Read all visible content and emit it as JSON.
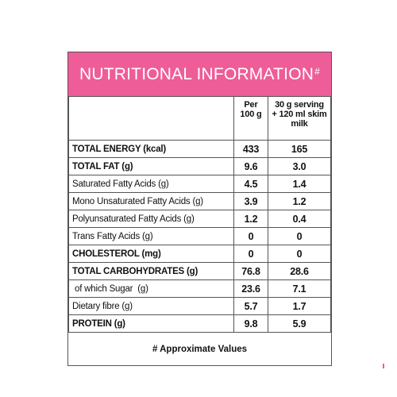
{
  "header": {
    "title": "NUTRITIONAL INFORMATION",
    "mark": "#"
  },
  "table": {
    "columns": [
      "Per 100 g",
      "30 g serving + 120 ml skim milk"
    ],
    "rows": [
      [
        "TOTAL ENERGY (kcal)",
        "433",
        "165"
      ],
      [
        "TOTAL FAT (g)",
        "9.6",
        "3.0"
      ],
      [
        "Saturated Fatty Acids (g)",
        "4.5",
        "1.4"
      ],
      [
        "Mono Unsaturated Fatty Acids (g)",
        "3.9",
        "1.2"
      ],
      [
        "Polyunsaturated Fatty Acids (g)",
        "1.2",
        "0.4"
      ],
      [
        "Trans Fatty Acids (g)",
        "0",
        "0"
      ],
      [
        "CHOLESTEROL (mg)",
        "0",
        "0"
      ],
      [
        "TOTAL CARBOHYDRATES (g)",
        "76.8",
        "28.6"
      ],
      [
        " of which Sugar  (g)",
        "23.6",
        "7.1"
      ],
      [
        "Dietary fibre (g)",
        "5.7",
        "1.7"
      ],
      [
        "PROTEIN (g)",
        "9.8",
        "5.9"
      ]
    ]
  },
  "footnote": "# Approximate Values"
}
